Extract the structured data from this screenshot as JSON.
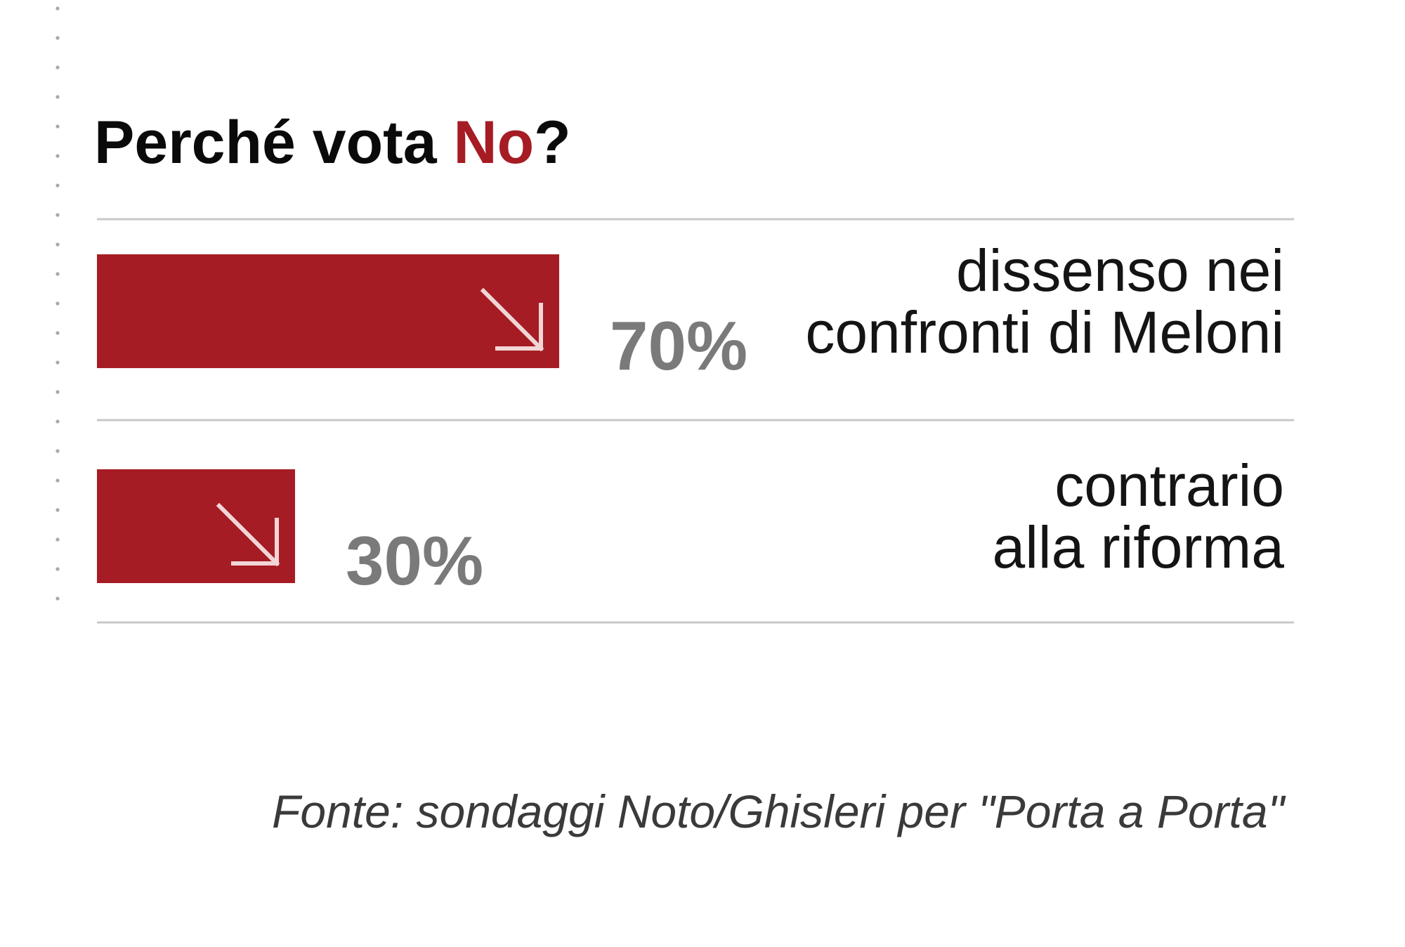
{
  "colors": {
    "bar": "#a61c24",
    "accent": "#a61c24",
    "title": "#0a0a0a",
    "percent": "#7a7a7a",
    "label": "#141414",
    "source": "#3a3a3a",
    "rule": "#c8c8c8",
    "dots": "#a8a8a8",
    "arrow": "#f2d6d6"
  },
  "icons": {
    "bar_arrow": "arrow-down-right-icon"
  },
  "chart_data": {
    "type": "bar",
    "orientation": "horizontal",
    "title_prefix": "Perché vota ",
    "title_highlight": "No",
    "title_suffix": "?",
    "categories": [
      "dissenso nei confronti di Meloni",
      "contrario alla riforma"
    ],
    "label_lines": [
      [
        "dissenso nei",
        "confronti di Meloni"
      ],
      [
        "contrario",
        "alla riforma"
      ]
    ],
    "values": [
      70,
      30
    ],
    "value_labels": [
      "70%",
      "30%"
    ],
    "unit": "%",
    "xlim": [
      0,
      100
    ],
    "grid": false,
    "legend": "none",
    "source": "Fonte: sondaggi Noto/Ghisleri per \"Porta a Porta\""
  }
}
